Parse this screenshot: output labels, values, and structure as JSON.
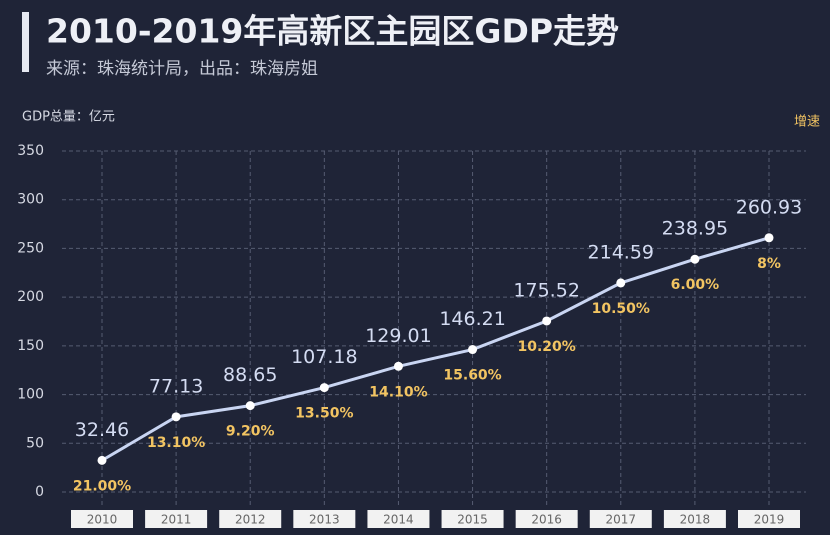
{
  "chart_data": {
    "type": "line",
    "title": "2010-2019年高新区主园区GDP走势",
    "subtitle": "来源：珠海统计局，出品：珠海房姐",
    "y_label": "GDP总量：亿元",
    "categories": [
      "2010",
      "2011",
      "2012",
      "2013",
      "2014",
      "2015",
      "2016",
      "2017",
      "2018",
      "2019"
    ],
    "series": [
      {
        "name": "GDP总量",
        "color": "#c9d5f2",
        "values": [
          32.46,
          77.13,
          88.65,
          107.18,
          129.01,
          146.21,
          175.52,
          214.59,
          238.95,
          260.93
        ]
      }
    ],
    "growth": {
      "name": "增速",
      "color": "#f2c462",
      "values": [
        21,
        13.1,
        9.2,
        13.5,
        14.1,
        15.6,
        10.2,
        10.5,
        6,
        8
      ],
      "value_labels": [
        "21.00%",
        "13.10%",
        "9.20%",
        "13.50%",
        "14.10%",
        "15.60%",
        "10.20%",
        "10.50%",
        "6.00%",
        "8%"
      ]
    },
    "ylim": [
      0,
      350
    ],
    "yticks": [
      0,
      50,
      100,
      150,
      200,
      250,
      300,
      350
    ],
    "grid": true
  }
}
